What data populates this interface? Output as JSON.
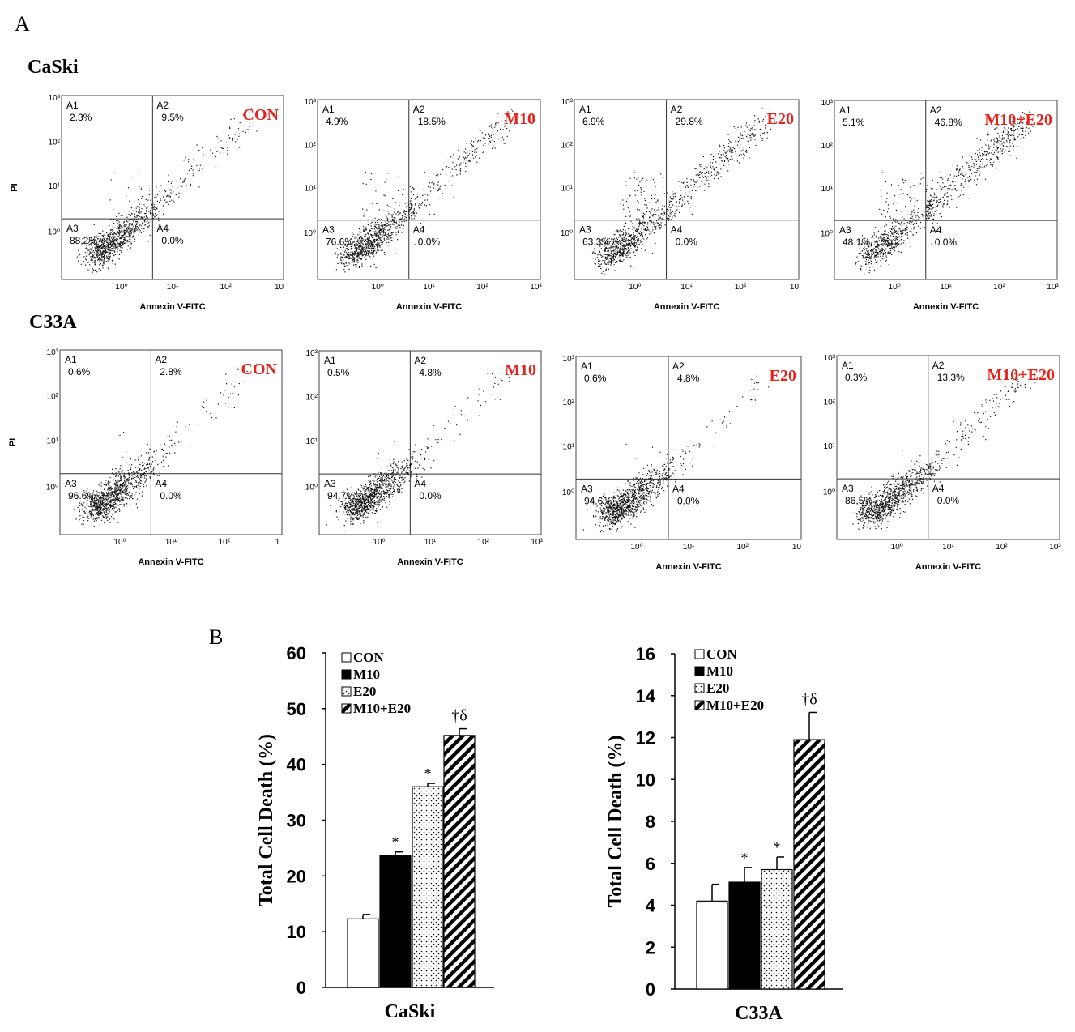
{
  "panel_labels": {
    "a": "A",
    "b": "B"
  },
  "colors": {
    "condition_label": "#e8221b",
    "ink": "#000000"
  },
  "chart_data": [
    {
      "type": "scatter",
      "cell_line": "CaSki",
      "xlabel": "Annexin V-FITC",
      "ylabel": "PI",
      "log_scale": true,
      "plots": [
        {
          "condition": "CON",
          "x_ticks": [
            "10⁰",
            "10¹",
            "10²",
            "10"
          ],
          "quadrants": {
            "A1": "2.3%",
            "A2": "9.5%",
            "A3": "88.2%",
            "A4": "0.0%"
          }
        },
        {
          "condition": "M10",
          "x_ticks": [
            "10⁰",
            "10¹",
            "10²",
            "10³"
          ],
          "quadrants": {
            "A1": "4.9%",
            "A2": "18.5%",
            "A3": "76.6%",
            "A4": "0.0%"
          }
        },
        {
          "condition": "E20",
          "x_ticks": [
            "10⁰",
            "10¹",
            "10²",
            "10"
          ],
          "quadrants": {
            "A1": "6.9%",
            "A2": "29.8%",
            "A3": "63.3%",
            "A4": "0.0%"
          }
        },
        {
          "condition": "M10+E20",
          "x_ticks": [
            "10⁰",
            "10¹",
            "10²",
            "10³"
          ],
          "quadrants": {
            "A1": "5.1%",
            "A2": "46.8%",
            "A3": "48.1%",
            "A4": "0.0%"
          }
        }
      ]
    },
    {
      "type": "scatter",
      "cell_line": "C33A",
      "xlabel": "Annexin V-FITC",
      "ylabel": "PI",
      "log_scale": true,
      "plots": [
        {
          "condition": "CON",
          "x_ticks": [
            "10⁰",
            "10¹",
            "10²",
            "1"
          ],
          "quadrants": {
            "A1": "0.6%",
            "A2": "2.8%",
            "A3": "96.6%",
            "A4": "0.0%"
          }
        },
        {
          "condition": "M10",
          "x_ticks": [
            "10⁰",
            "10¹",
            "10²",
            "10³"
          ],
          "quadrants": {
            "A1": "0.5%",
            "A2": "4.8%",
            "A3": "94.7%",
            "A4": "0.0%"
          }
        },
        {
          "condition": "E20",
          "x_ticks": [
            "10⁰",
            "10¹",
            "10²",
            "10"
          ],
          "quadrants": {
            "A1": "0.6%",
            "A2": "4.8%",
            "A3": "94.6%",
            "A4": "0.0%"
          }
        },
        {
          "condition": "M10+E20",
          "x_ticks": [
            "10⁰",
            "10¹",
            "10²",
            "10³"
          ],
          "quadrants": {
            "A1": "0.3%",
            "A2": "13.3%",
            "A3": "86.5%",
            "A4": "0.0%"
          }
        }
      ]
    },
    {
      "type": "bar",
      "cell_line": "CaSki",
      "xlabel": "CaSki",
      "ylabel": "Total Cell Death (%)",
      "ylim": [
        0,
        60
      ],
      "yticks": [
        0,
        10,
        20,
        30,
        40,
        50,
        60
      ],
      "categories": [
        "CON",
        "M10",
        "E20",
        "M10+E20"
      ],
      "values": [
        12.3,
        23.6,
        36.0,
        45.2
      ],
      "errors": [
        0.8,
        0.7,
        0.6,
        1.2
      ],
      "annotations": [
        "",
        "*",
        "*",
        "†δ"
      ],
      "legend": [
        "CON",
        "M10",
        "E20",
        "M10+E20"
      ],
      "legend_position": "top-left",
      "fills": [
        "white",
        "black",
        "dots",
        "hatch"
      ]
    },
    {
      "type": "bar",
      "cell_line": "C33A",
      "xlabel": "C33A",
      "ylabel": "Total Cell Death (%)",
      "ylim": [
        0,
        16
      ],
      "yticks": [
        0,
        2,
        4,
        6,
        8,
        10,
        12,
        14,
        16
      ],
      "categories": [
        "CON",
        "M10",
        "E20",
        "M10+E20"
      ],
      "values": [
        4.2,
        5.1,
        5.7,
        11.9
      ],
      "errors": [
        0.8,
        0.7,
        0.6,
        1.3
      ],
      "annotations": [
        "",
        "*",
        "*",
        "†δ"
      ],
      "legend": [
        "CON",
        "M10",
        "E20",
        "M10+E20"
      ],
      "legend_position": "top-left",
      "fills": [
        "white",
        "black",
        "dots",
        "hatch"
      ]
    }
  ]
}
